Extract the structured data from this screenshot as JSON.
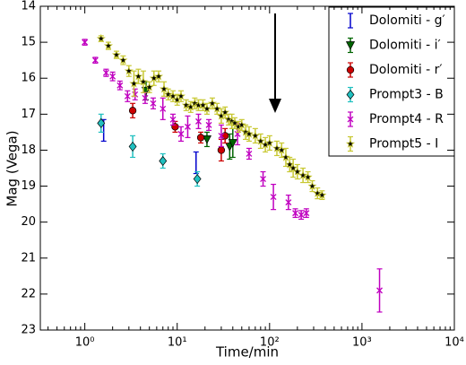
{
  "chart_data": {
    "type": "errorbar-scatter",
    "x_label": "Time/min",
    "y_label": "Mag (Vega)",
    "x_log": true,
    "invert_y": true,
    "legend": "upper right",
    "xlim": [
      0.33,
      10000
    ],
    "ylim": [
      14,
      23
    ],
    "xticks": [
      {
        "value": 1,
        "label": "10⁰"
      },
      {
        "value": 10,
        "label": "10¹"
      },
      {
        "value": 100,
        "label": "10²"
      },
      {
        "value": 1000,
        "label": "10³"
      },
      {
        "value": 10000,
        "label": "10⁴"
      }
    ],
    "yticks": [
      14,
      15,
      16,
      17,
      18,
      19,
      20,
      21,
      22,
      23
    ],
    "series": [
      {
        "name": "Dolomiti - g′",
        "color": "#0000cc",
        "marker": "none",
        "x": [
          1.6,
          16
        ],
        "values": [
          17.45,
          18.35
        ],
        "errors": [
          0.3,
          0.3
        ]
      },
      {
        "name": "Dolomiti - i′",
        "color": "#006400",
        "marker": "triangle-down",
        "x": [
          4.6,
          21,
          37,
          40
        ],
        "values": [
          16.35,
          17.7,
          17.9,
          17.8
        ],
        "errors": [
          0.25,
          0.2,
          0.35,
          0.4
        ]
      },
      {
        "name": "Dolomiti - r′",
        "color": "#cc0000",
        "marker": "circle",
        "x": [
          3.3,
          9.5,
          18,
          30,
          33
        ],
        "values": [
          16.9,
          17.35,
          17.65,
          18.0,
          17.6
        ],
        "errors": [
          0.2,
          0.15,
          0.15,
          0.3,
          0.2
        ]
      },
      {
        "name": "Prompt3 - B",
        "color": "#20c0c0",
        "marker": "diamond",
        "x": [
          1.5,
          3.3,
          7,
          16.5
        ],
        "values": [
          17.25,
          17.9,
          18.3,
          18.8
        ],
        "errors": [
          0.25,
          0.3,
          0.2,
          0.2
        ]
      },
      {
        "name": "Prompt4 - R",
        "color": "#c000c0",
        "marker": "x",
        "x": [
          1,
          1.3,
          1.7,
          2.0,
          2.4,
          2.9,
          3.5,
          4.5,
          5.5,
          7,
          9,
          11,
          13,
          17,
          22,
          30,
          45,
          60,
          85,
          110,
          160,
          190,
          220,
          250,
          1550
        ],
        "values": [
          15.0,
          15.5,
          15.85,
          15.95,
          16.2,
          16.5,
          16.45,
          16.55,
          16.7,
          16.85,
          17.15,
          17.55,
          17.35,
          17.2,
          17.3,
          17.6,
          17.55,
          18.1,
          18.8,
          19.3,
          19.45,
          19.75,
          19.8,
          19.75,
          21.9
        ],
        "errors": [
          0.08,
          0.08,
          0.1,
          0.12,
          0.12,
          0.15,
          0.15,
          0.15,
          0.15,
          0.3,
          0.15,
          0.2,
          0.3,
          0.2,
          0.15,
          0.3,
          0.3,
          0.15,
          0.2,
          0.35,
          0.2,
          0.12,
          0.12,
          0.12,
          0.6
        ]
      },
      {
        "name": "Prompt5 - I",
        "color": "#c8c832",
        "marker": "star",
        "x": [
          1.5,
          1.8,
          2.2,
          2.6,
          3.0,
          3.4,
          3.8,
          4.3,
          5.0,
          5.6,
          6.3,
          7.2,
          8,
          9,
          10,
          11,
          12.5,
          14,
          15.5,
          17,
          19,
          21,
          24,
          27,
          30,
          33,
          36,
          39,
          42,
          46,
          50,
          55,
          60,
          70,
          80,
          90,
          100,
          120,
          135,
          150,
          165,
          180,
          200,
          230,
          260,
          290,
          330,
          370
        ],
        "values": [
          14.9,
          15.1,
          15.35,
          15.5,
          15.8,
          16.15,
          15.95,
          16.1,
          16.25,
          16.0,
          15.95,
          16.3,
          16.45,
          16.5,
          16.6,
          16.5,
          16.75,
          16.8,
          16.7,
          16.75,
          16.75,
          16.85,
          16.7,
          16.85,
          17.05,
          16.95,
          17.15,
          17.2,
          17.25,
          17.35,
          17.3,
          17.5,
          17.55,
          17.6,
          17.75,
          17.85,
          17.8,
          17.95,
          18.0,
          18.2,
          18.4,
          18.5,
          18.6,
          18.7,
          18.75,
          19.0,
          19.2,
          19.25
        ],
        "errors": [
          0.08,
          0.1,
          0.1,
          0.12,
          0.15,
          0.35,
          0.2,
          0.3,
          0.15,
          0.2,
          0.15,
          0.2,
          0.15,
          0.15,
          0.15,
          0.15,
          0.15,
          0.15,
          0.15,
          0.15,
          0.15,
          0.15,
          0.15,
          0.15,
          0.2,
          0.15,
          0.15,
          0.2,
          0.15,
          0.15,
          0.15,
          0.2,
          0.2,
          0.2,
          0.2,
          0.2,
          0.2,
          0.2,
          0.2,
          0.25,
          0.2,
          0.25,
          0.2,
          0.2,
          0.15,
          0.15,
          0.15,
          0.12
        ]
      }
    ]
  }
}
